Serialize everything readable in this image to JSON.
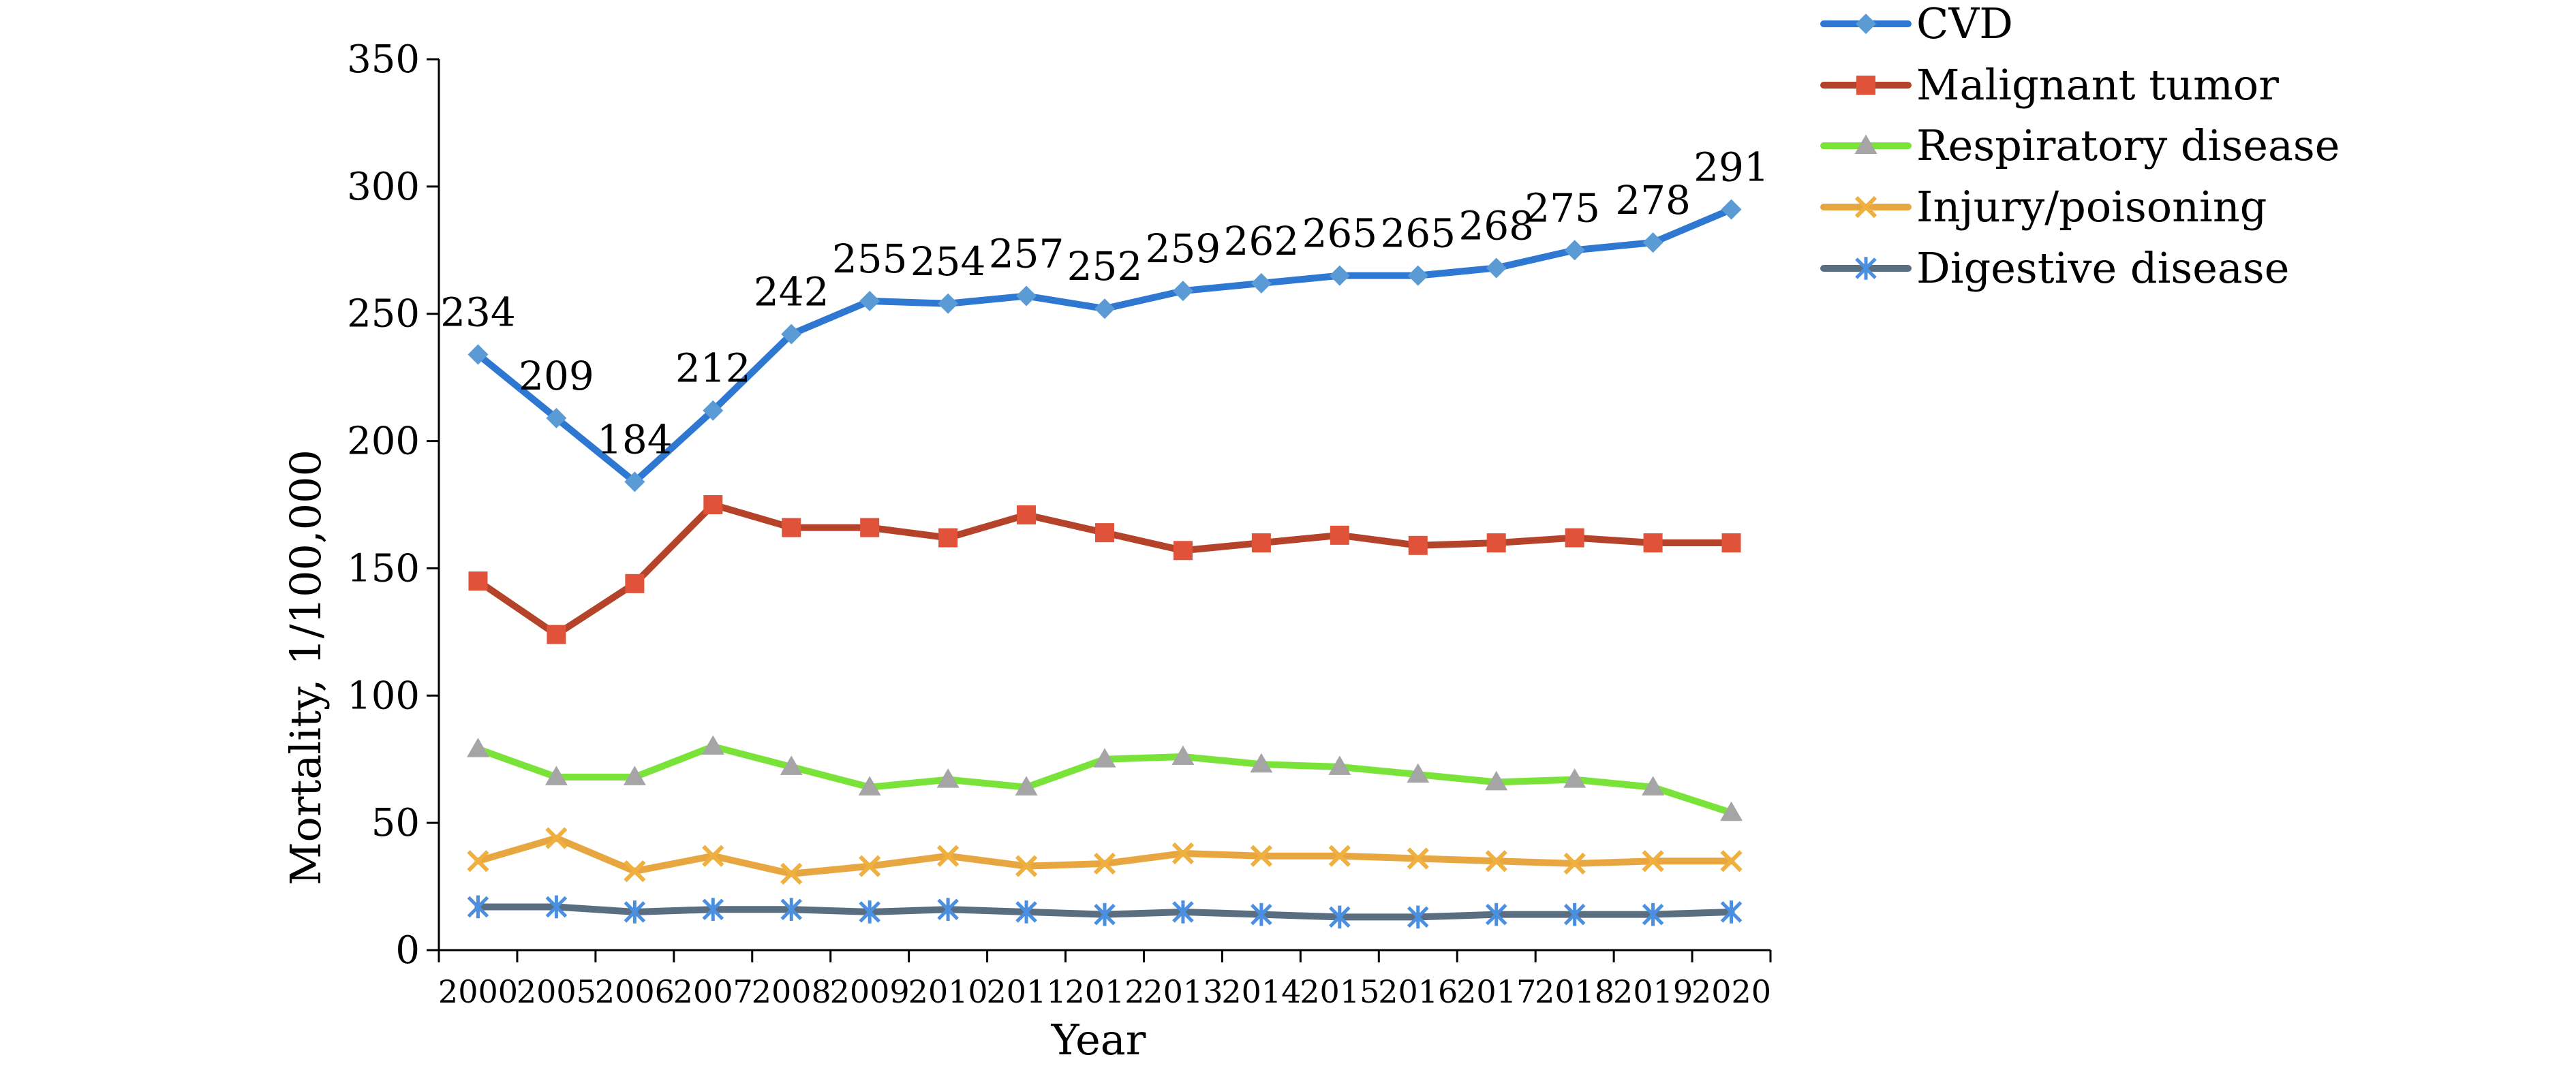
{
  "chart_data": {
    "type": "line",
    "xlabel": "Year",
    "ylabel": "Mortality, 1/100,000",
    "ylim": [
      0,
      350
    ],
    "yticks": [
      0,
      50,
      100,
      150,
      200,
      250,
      300,
      350
    ],
    "categories": [
      "2000",
      "2005",
      "2006",
      "2007",
      "2008",
      "2009",
      "2010",
      "2011",
      "2012",
      "2013",
      "2014",
      "2015",
      "2016",
      "2017",
      "2018",
      "2019",
      "2020"
    ],
    "grid": false,
    "legend_position": "top-right",
    "series": [
      {
        "name": "CVD",
        "color": "#2E78D2",
        "marker_color": "#5B9BD5",
        "marker": "diamond",
        "values": [
          234,
          209,
          184,
          212,
          242,
          255,
          254,
          257,
          252,
          259,
          262,
          265,
          265,
          268,
          275,
          278,
          291
        ],
        "data_labels": [
          "234",
          "209",
          "184",
          "212",
          "242",
          "255",
          "254",
          "257",
          "252",
          "259",
          "262",
          "265",
          "265",
          "268",
          "275",
          "278",
          "291"
        ]
      },
      {
        "name": "Malignant tumor",
        "color": "#B5432A",
        "marker_color": "#E0533A",
        "marker": "square",
        "values": [
          145,
          124,
          144,
          175,
          166,
          166,
          162,
          171,
          164,
          157,
          160,
          163,
          159,
          160,
          162,
          160,
          160
        ]
      },
      {
        "name": "Respiratory disease",
        "color": "#7AE33A",
        "marker_color": "#A5A5A5",
        "marker": "triangle",
        "values": [
          79,
          68,
          68,
          80,
          72,
          64,
          67,
          64,
          75,
          76,
          73,
          72,
          69,
          66,
          67,
          64,
          54
        ]
      },
      {
        "name": "Injury/poisoning",
        "color": "#E8A640",
        "marker_color": "#F0B040",
        "marker": "x",
        "values": [
          35,
          44,
          31,
          37,
          30,
          33,
          37,
          33,
          34,
          38,
          37,
          37,
          36,
          35,
          34,
          35,
          35
        ]
      },
      {
        "name": "Digestive disease",
        "color": "#5A6E82",
        "marker_color": "#4A8FE0",
        "marker": "star",
        "values": [
          17,
          17,
          15,
          16,
          16,
          15,
          16,
          15,
          14,
          15,
          14,
          13,
          13,
          14,
          14,
          14,
          15
        ]
      }
    ]
  }
}
